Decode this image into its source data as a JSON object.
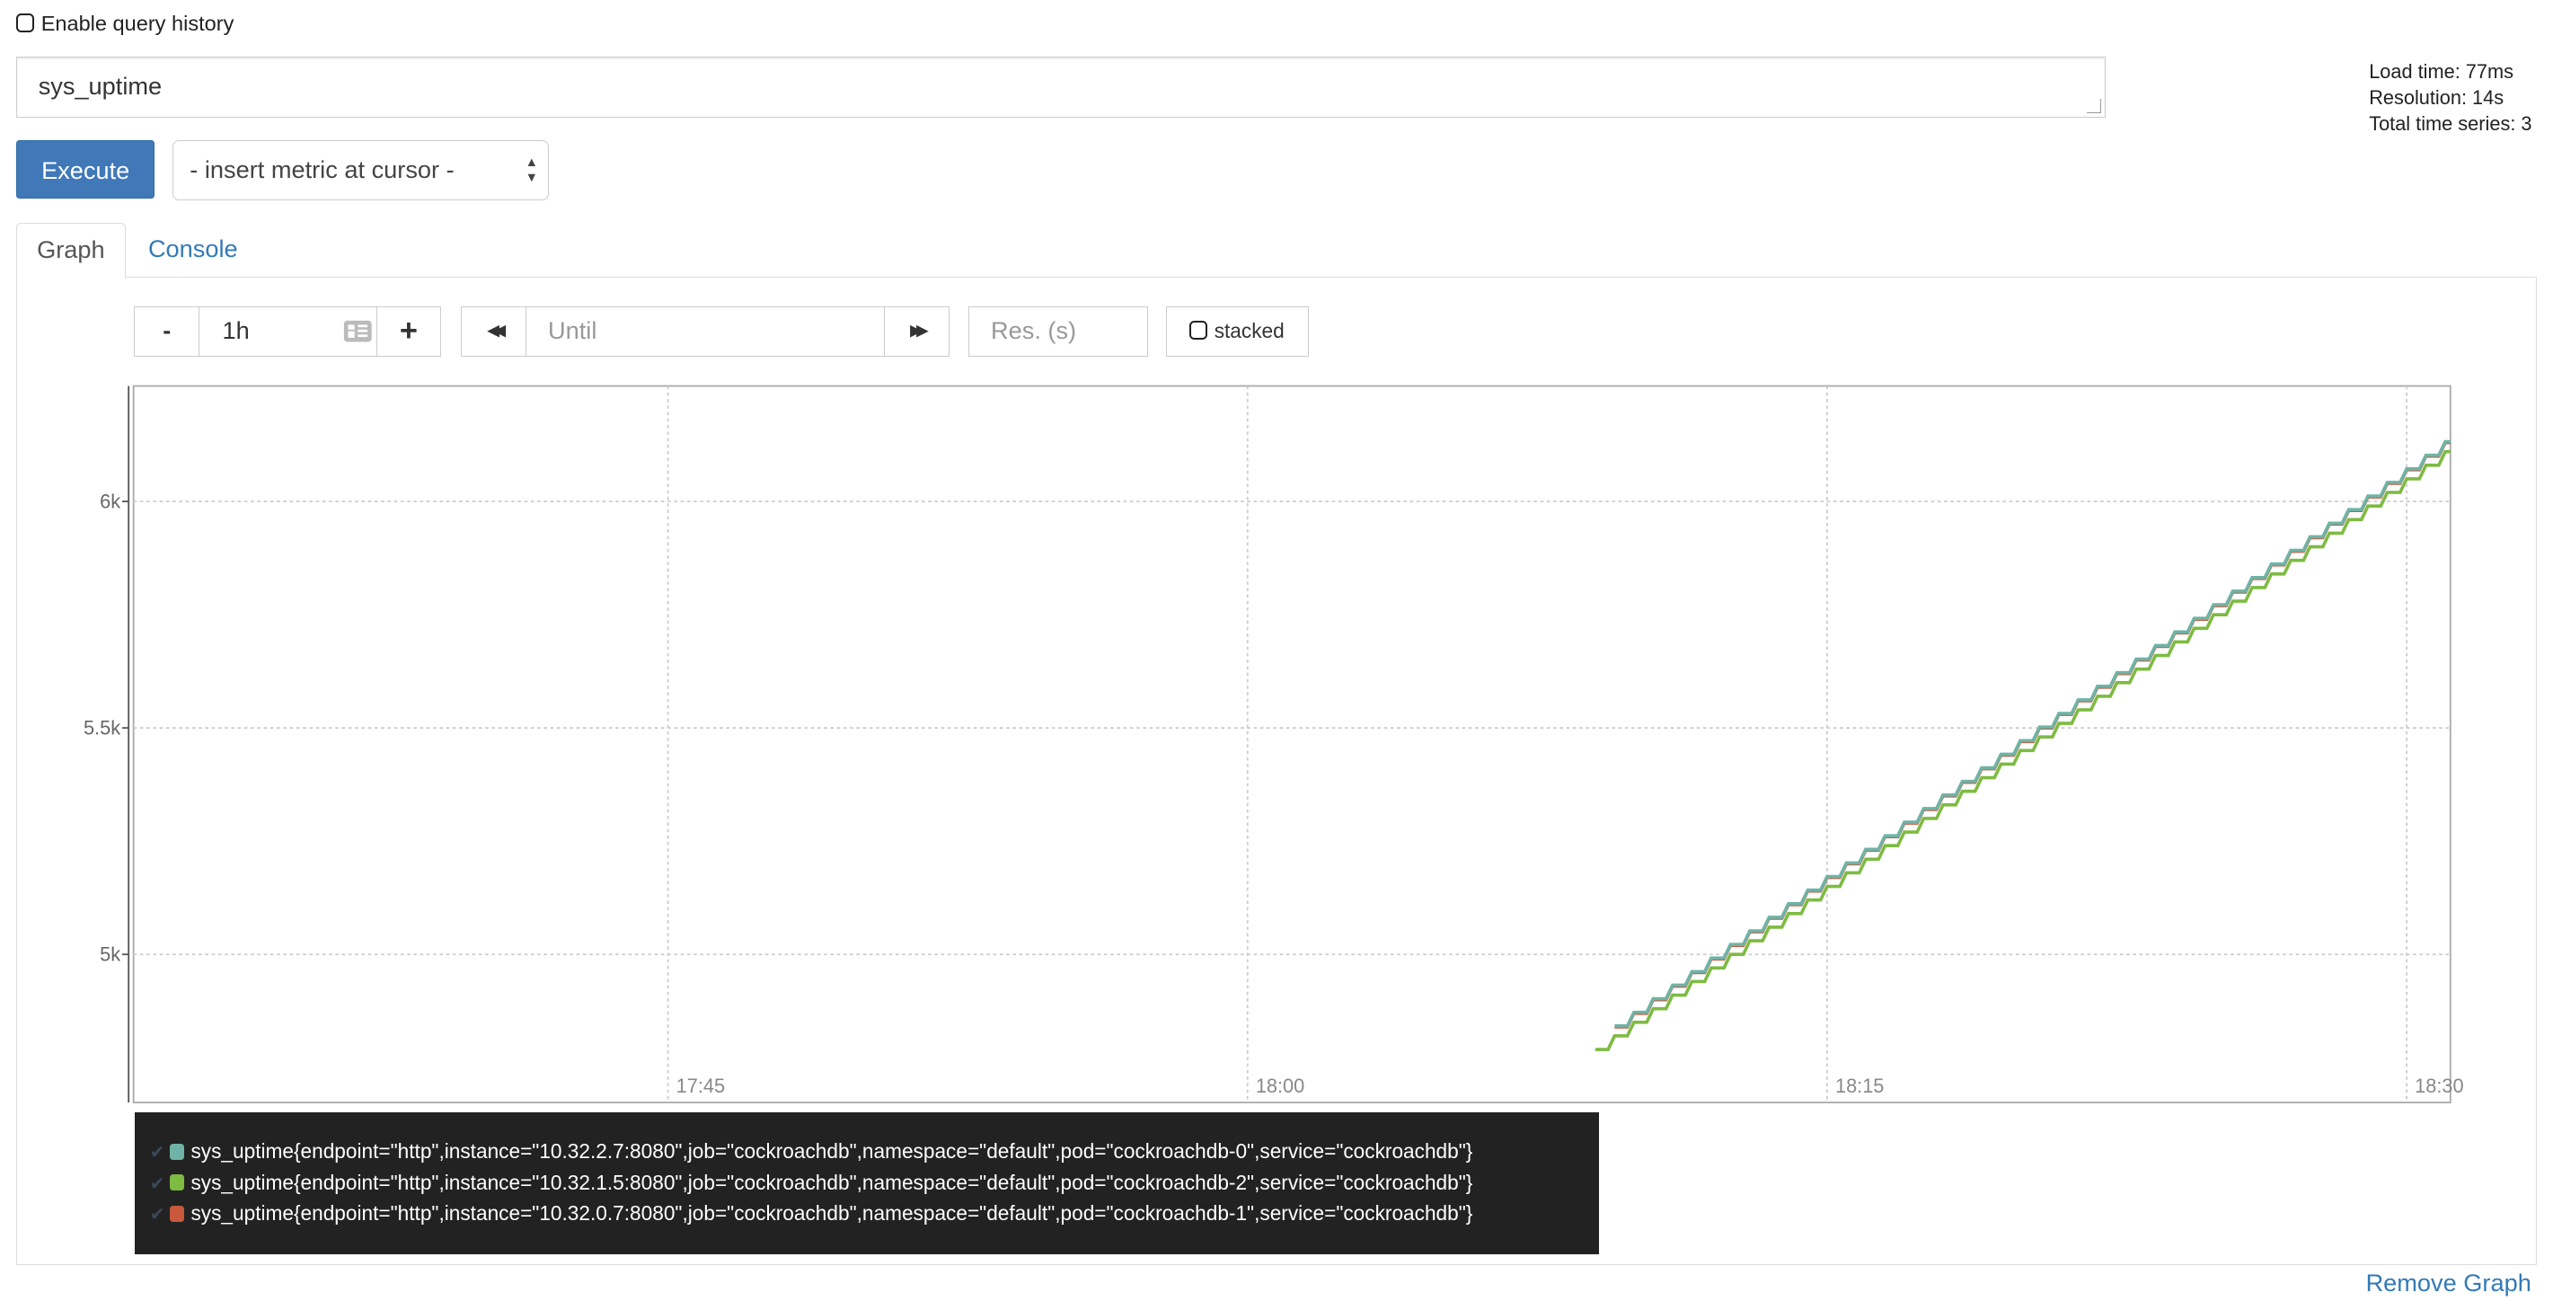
{
  "query_history": {
    "label": "Enable query history",
    "checked": false
  },
  "query": {
    "value": "sys_uptime"
  },
  "info": {
    "load_time": "Load time: 77ms",
    "resolution": "Resolution: 14s",
    "total_series": "Total time series: 3"
  },
  "execute_label": "Execute",
  "metric_select": {
    "selected": "- insert metric at cursor -"
  },
  "tabs": [
    {
      "label": "Graph",
      "active": true
    },
    {
      "label": "Console",
      "active": false
    }
  ],
  "controls": {
    "range_minus": "-",
    "range_value": "1h",
    "range_plus": "+",
    "back": "◀◀",
    "until_placeholder": "Until",
    "forward": "▶▶",
    "res_placeholder": "Res. (s)",
    "stacked_label": "stacked"
  },
  "remove_graph": "Remove Graph",
  "chart_data": {
    "type": "line",
    "step": true,
    "ylim": [
      4673,
      6255
    ],
    "xlim": [
      "17:31:10",
      "18:31:08"
    ],
    "y_ticks": [
      {
        "value": 5000,
        "label": "5k"
      },
      {
        "value": 5500,
        "label": "5.5k"
      },
      {
        "value": 6000,
        "label": "6k"
      }
    ],
    "x_ticks": [
      "17:45",
      "18:00",
      "18:15",
      "18:30"
    ],
    "grid": true,
    "legend_position": "bottom",
    "x": [
      "18:09:00",
      "18:09:30",
      "18:10:00",
      "18:10:30",
      "18:11:00",
      "18:11:30",
      "18:12:00",
      "18:12:30",
      "18:13:00",
      "18:13:30",
      "18:14:00",
      "18:14:30",
      "18:15:00",
      "18:15:30",
      "18:16:00",
      "18:16:30",
      "18:17:00",
      "18:17:30",
      "18:18:00",
      "18:18:30",
      "18:19:00",
      "18:19:30",
      "18:20:00",
      "18:20:30",
      "18:21:00",
      "18:21:30",
      "18:22:00",
      "18:22:30",
      "18:23:00",
      "18:23:30",
      "18:24:00",
      "18:24:30",
      "18:25:00",
      "18:25:30",
      "18:26:00",
      "18:26:30",
      "18:27:00",
      "18:27:30",
      "18:28:00",
      "18:28:30",
      "18:29:00",
      "18:29:30",
      "18:30:00",
      "18:30:30",
      "18:31:00"
    ],
    "series": [
      {
        "name": "sys_uptime{endpoint=\"http\",instance=\"10.32.2.7:8080\",job=\"cockroachdb\",namespace=\"default\",pod=\"cockroachdb-0\",service=\"cockroachdb\"}",
        "color": "#6fb3a6",
        "values": [
          null,
          4842,
          4872,
          4902,
          4932,
          4962,
          4992,
          5022,
          5052,
          5082,
          5112,
          5142,
          5172,
          5202,
          5232,
          5262,
          5292,
          5322,
          5352,
          5382,
          5412,
          5442,
          5472,
          5502,
          5532,
          5562,
          5592,
          5622,
          5652,
          5682,
          5712,
          5742,
          5772,
          5802,
          5832,
          5862,
          5892,
          5922,
          5952,
          5982,
          6012,
          6042,
          6072,
          6102,
          6132
        ]
      },
      {
        "name": "sys_uptime{endpoint=\"http\",instance=\"10.32.1.5:8080\",job=\"cockroachdb\",namespace=\"default\",pod=\"cockroachdb-2\",service=\"cockroachdb\"}",
        "color": "#7dbb42",
        "values": [
          4790,
          4820,
          4850,
          4880,
          4910,
          4940,
          4970,
          5000,
          5030,
          5060,
          5090,
          5120,
          5150,
          5180,
          5210,
          5240,
          5270,
          5300,
          5330,
          5360,
          5390,
          5420,
          5450,
          5480,
          5510,
          5540,
          5570,
          5600,
          5630,
          5660,
          5690,
          5720,
          5750,
          5780,
          5810,
          5840,
          5870,
          5900,
          5930,
          5960,
          5990,
          6020,
          6050,
          6080,
          6110
        ]
      },
      {
        "name": "sys_uptime{endpoint=\"http\",instance=\"10.32.0.7:8080\",job=\"cockroachdb\",namespace=\"default\",pod=\"cockroachdb-1\",service=\"cockroachdb\"}",
        "color": "#c9583c",
        "values": [
          null,
          4840,
          4870,
          4900,
          4930,
          4960,
          4990,
          5020,
          5050,
          5080,
          5110,
          5140,
          5170,
          5200,
          5230,
          5260,
          5290,
          5320,
          5350,
          5380,
          5410,
          5440,
          5470,
          5500,
          5530,
          5560,
          5590,
          5620,
          5650,
          5680,
          5710,
          5740,
          5770,
          5800,
          5830,
          5860,
          5890,
          5920,
          5950,
          5980,
          6010,
          6040,
          6070,
          6100,
          6130
        ]
      }
    ]
  }
}
